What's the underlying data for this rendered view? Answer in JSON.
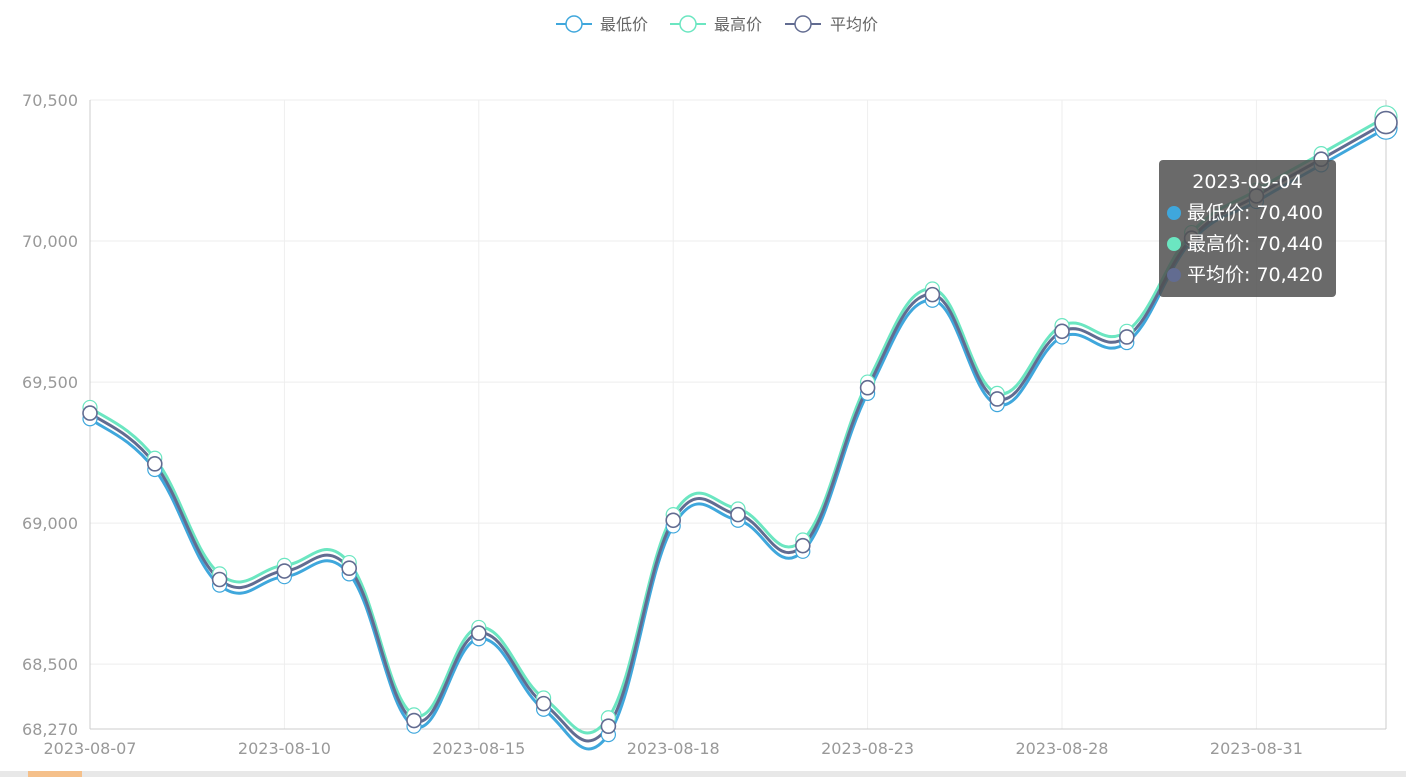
{
  "chart_data": {
    "type": "line",
    "smooth": true,
    "x": [
      "2023-08-07",
      "2023-08-08",
      "2023-08-09",
      "2023-08-10",
      "2023-08-11",
      "2023-08-14",
      "2023-08-15",
      "2023-08-16",
      "2023-08-17",
      "2023-08-18",
      "2023-08-21",
      "2023-08-22",
      "2023-08-23",
      "2023-08-24",
      "2023-08-25",
      "2023-08-28",
      "2023-08-29",
      "2023-08-30",
      "2023-08-31",
      "2023-09-01",
      "2023-09-04"
    ],
    "x_tick_labels": [
      "2023-08-07",
      "2023-08-10",
      "2023-08-15",
      "2023-08-18",
      "2023-08-23",
      "2023-08-28",
      "2023-08-31"
    ],
    "x_tick_indices": [
      0,
      3,
      6,
      9,
      12,
      15,
      18
    ],
    "y_tick_labels": [
      "70,500",
      "70,000",
      "69,500",
      "69,000",
      "68,500",
      "68,270"
    ],
    "y_ticks": [
      70500,
      70000,
      69500,
      69000,
      68500,
      68270
    ],
    "ylim": [
      68270,
      70500
    ],
    "grid": true,
    "legend_position": "top-center",
    "series": [
      {
        "name": "最低价",
        "color": "#3fa7dc",
        "values": [
          69370,
          69190,
          68780,
          68810,
          68820,
          68280,
          68590,
          68340,
          68250,
          68990,
          69010,
          68900,
          69460,
          69790,
          69420,
          69660,
          69640,
          70000,
          70140,
          70270,
          70400
        ]
      },
      {
        "name": "最高价",
        "color": "#6be6c1",
        "values": [
          69410,
          69230,
          68820,
          68850,
          68860,
          68320,
          68630,
          68380,
          68310,
          69030,
          69050,
          68940,
          69500,
          69830,
          69460,
          69700,
          69680,
          70030,
          70180,
          70310,
          70440
        ]
      },
      {
        "name": "平均价",
        "color": "#626c91",
        "values": [
          69390,
          69210,
          68800,
          68830,
          68840,
          68300,
          68610,
          68360,
          68280,
          69010,
          69030,
          68920,
          69480,
          69810,
          69440,
          69680,
          69660,
          70010,
          70160,
          70290,
          70420
        ]
      }
    ],
    "tooltip": {
      "title": "2023-09-04",
      "rows": [
        {
          "label": "最低价: 70,400",
          "color": "#3fa7dc"
        },
        {
          "label": "最高价: 70,440",
          "color": "#6be6c1"
        },
        {
          "label": "平均价: 70,420",
          "color": "#626c91"
        }
      ]
    }
  }
}
